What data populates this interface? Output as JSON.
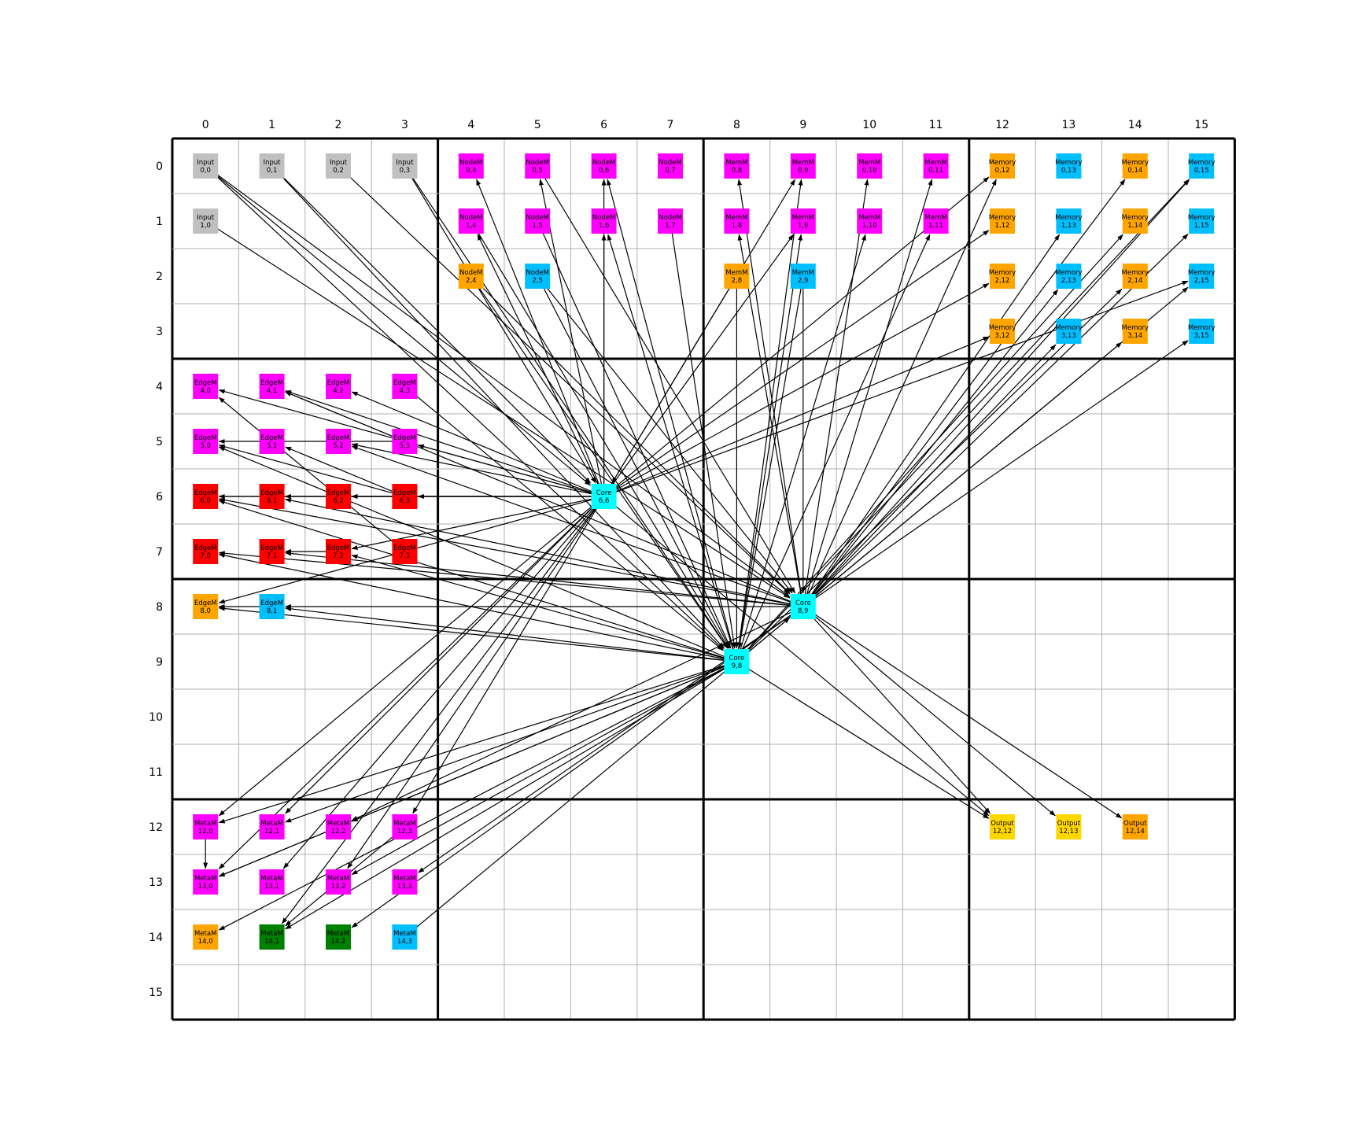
{
  "grid": {
    "rows": 16,
    "cols": 16,
    "x_ticks": [
      "0",
      "1",
      "2",
      "3",
      "4",
      "5",
      "6",
      "7",
      "8",
      "9",
      "10",
      "11",
      "12",
      "13",
      "14",
      "15"
    ],
    "y_ticks": [
      "0",
      "1",
      "2",
      "3",
      "4",
      "5",
      "6",
      "7",
      "8",
      "9",
      "10",
      "11",
      "12",
      "13",
      "14",
      "15"
    ],
    "block_size": 4
  },
  "colors": {
    "gray": "#c0c0c0",
    "magenta": "#ff00ff",
    "orange": "#ffa500",
    "skyblue": "#00bfff",
    "cyan": "#00ffff",
    "red": "#ff0000",
    "green": "#008000",
    "gold": "#ffd700",
    "grid_line": "#b0b0b0",
    "block_line": "#000000",
    "edge": "#000000"
  },
  "nodes": [
    {
      "name": "Input",
      "r": 0,
      "c": 0,
      "color": "gray"
    },
    {
      "name": "Input",
      "r": 0,
      "c": 1,
      "color": "gray"
    },
    {
      "name": "Input",
      "r": 0,
      "c": 2,
      "color": "gray"
    },
    {
      "name": "Input",
      "r": 0,
      "c": 3,
      "color": "gray"
    },
    {
      "name": "Input",
      "r": 1,
      "c": 0,
      "color": "gray"
    },
    {
      "name": "NodeM",
      "r": 0,
      "c": 4,
      "color": "magenta"
    },
    {
      "name": "NodeM",
      "r": 0,
      "c": 5,
      "color": "magenta"
    },
    {
      "name": "NodeM",
      "r": 0,
      "c": 6,
      "color": "magenta"
    },
    {
      "name": "NodeM",
      "r": 0,
      "c": 7,
      "color": "magenta"
    },
    {
      "name": "NodeM",
      "r": 1,
      "c": 4,
      "color": "magenta"
    },
    {
      "name": "NodeM",
      "r": 1,
      "c": 5,
      "color": "magenta"
    },
    {
      "name": "NodeM",
      "r": 1,
      "c": 6,
      "color": "magenta"
    },
    {
      "name": "NodeM",
      "r": 1,
      "c": 7,
      "color": "magenta"
    },
    {
      "name": "NodeM",
      "r": 2,
      "c": 4,
      "color": "orange"
    },
    {
      "name": "NodeM",
      "r": 2,
      "c": 5,
      "color": "skyblue"
    },
    {
      "name": "MemM",
      "r": 0,
      "c": 8,
      "color": "magenta"
    },
    {
      "name": "MemM",
      "r": 0,
      "c": 9,
      "color": "magenta"
    },
    {
      "name": "MemM",
      "r": 0,
      "c": 10,
      "color": "magenta"
    },
    {
      "name": "MemM",
      "r": 0,
      "c": 11,
      "color": "magenta"
    },
    {
      "name": "MemM",
      "r": 1,
      "c": 8,
      "color": "magenta"
    },
    {
      "name": "MemM",
      "r": 1,
      "c": 9,
      "color": "magenta"
    },
    {
      "name": "MemM",
      "r": 1,
      "c": 10,
      "color": "magenta"
    },
    {
      "name": "MemM",
      "r": 1,
      "c": 11,
      "color": "magenta"
    },
    {
      "name": "MemM",
      "r": 2,
      "c": 8,
      "color": "orange"
    },
    {
      "name": "MemM",
      "r": 2,
      "c": 9,
      "color": "skyblue"
    },
    {
      "name": "Memory",
      "r": 0,
      "c": 12,
      "color": "orange"
    },
    {
      "name": "Memory",
      "r": 0,
      "c": 13,
      "color": "skyblue"
    },
    {
      "name": "Memory",
      "r": 0,
      "c": 14,
      "color": "orange"
    },
    {
      "name": "Memory",
      "r": 0,
      "c": 15,
      "color": "skyblue"
    },
    {
      "name": "Memory",
      "r": 1,
      "c": 12,
      "color": "orange"
    },
    {
      "name": "Memory",
      "r": 1,
      "c": 13,
      "color": "skyblue"
    },
    {
      "name": "Memory",
      "r": 1,
      "c": 14,
      "color": "orange"
    },
    {
      "name": "Memory",
      "r": 1,
      "c": 15,
      "color": "skyblue"
    },
    {
      "name": "Memory",
      "r": 2,
      "c": 12,
      "color": "orange"
    },
    {
      "name": "Memory",
      "r": 2,
      "c": 13,
      "color": "skyblue"
    },
    {
      "name": "Memory",
      "r": 2,
      "c": 14,
      "color": "orange"
    },
    {
      "name": "Memory",
      "r": 2,
      "c": 15,
      "color": "skyblue"
    },
    {
      "name": "Memory",
      "r": 3,
      "c": 12,
      "color": "orange"
    },
    {
      "name": "Memory",
      "r": 3,
      "c": 13,
      "color": "skyblue"
    },
    {
      "name": "Memory",
      "r": 3,
      "c": 14,
      "color": "orange"
    },
    {
      "name": "Memory",
      "r": 3,
      "c": 15,
      "color": "skyblue"
    },
    {
      "name": "EdgeM",
      "r": 4,
      "c": 0,
      "color": "magenta"
    },
    {
      "name": "EdgeM",
      "r": 4,
      "c": 1,
      "color": "magenta"
    },
    {
      "name": "EdgeM",
      "r": 4,
      "c": 2,
      "color": "magenta"
    },
    {
      "name": "EdgeM",
      "r": 4,
      "c": 3,
      "color": "magenta"
    },
    {
      "name": "EdgeM",
      "r": 5,
      "c": 0,
      "color": "magenta"
    },
    {
      "name": "EdgeM",
      "r": 5,
      "c": 1,
      "color": "magenta"
    },
    {
      "name": "EdgeM",
      "r": 5,
      "c": 2,
      "color": "magenta"
    },
    {
      "name": "EdgeM",
      "r": 5,
      "c": 3,
      "color": "magenta"
    },
    {
      "name": "EdgeM",
      "r": 6,
      "c": 0,
      "color": "red"
    },
    {
      "name": "EdgeM",
      "r": 6,
      "c": 1,
      "color": "red"
    },
    {
      "name": "EdgeM",
      "r": 6,
      "c": 2,
      "color": "red"
    },
    {
      "name": "EdgeM",
      "r": 6,
      "c": 3,
      "color": "red"
    },
    {
      "name": "EdgeM",
      "r": 7,
      "c": 0,
      "color": "red"
    },
    {
      "name": "EdgeM",
      "r": 7,
      "c": 1,
      "color": "red"
    },
    {
      "name": "EdgeM",
      "r": 7,
      "c": 2,
      "color": "red"
    },
    {
      "name": "EdgeM",
      "r": 7,
      "c": 3,
      "color": "red"
    },
    {
      "name": "EdgeM",
      "r": 8,
      "c": 0,
      "color": "orange"
    },
    {
      "name": "EdgeM",
      "r": 8,
      "c": 1,
      "color": "skyblue"
    },
    {
      "name": "Core",
      "r": 6,
      "c": 6,
      "color": "cyan"
    },
    {
      "name": "Core",
      "r": 8,
      "c": 9,
      "color": "cyan"
    },
    {
      "name": "Core",
      "r": 9,
      "c": 8,
      "color": "cyan"
    },
    {
      "name": "MetaM",
      "r": 12,
      "c": 0,
      "color": "magenta"
    },
    {
      "name": "MetaM",
      "r": 12,
      "c": 1,
      "color": "magenta"
    },
    {
      "name": "MetaM",
      "r": 12,
      "c": 2,
      "color": "magenta"
    },
    {
      "name": "MetaM",
      "r": 12,
      "c": 3,
      "color": "magenta"
    },
    {
      "name": "MetaM",
      "r": 13,
      "c": 0,
      "color": "magenta"
    },
    {
      "name": "MetaM",
      "r": 13,
      "c": 1,
      "color": "magenta"
    },
    {
      "name": "MetaM",
      "r": 13,
      "c": 2,
      "color": "magenta"
    },
    {
      "name": "MetaM",
      "r": 13,
      "c": 3,
      "color": "magenta"
    },
    {
      "name": "MetaM",
      "r": 14,
      "c": 0,
      "color": "orange"
    },
    {
      "name": "MetaM",
      "r": 14,
      "c": 1,
      "color": "green"
    },
    {
      "name": "MetaM",
      "r": 14,
      "c": 2,
      "color": "green"
    },
    {
      "name": "MetaM",
      "r": 14,
      "c": 3,
      "color": "skyblue"
    },
    {
      "name": "Output",
      "r": 12,
      "c": 12,
      "color": "gold"
    },
    {
      "name": "Output",
      "r": 12,
      "c": 13,
      "color": "gold"
    },
    {
      "name": "Output",
      "r": 12,
      "c": 14,
      "color": "orange"
    }
  ],
  "edges": [
    [
      [
        0,
        0
      ],
      [
        6,
        6
      ]
    ],
    [
      [
        0,
        0
      ],
      [
        8,
        9
      ]
    ],
    [
      [
        0,
        0
      ],
      [
        9,
        8
      ]
    ],
    [
      [
        1,
        0
      ],
      [
        8,
        9
      ]
    ],
    [
      [
        0,
        1
      ],
      [
        6,
        6
      ]
    ],
    [
      [
        0,
        1
      ],
      [
        9,
        8
      ]
    ],
    [
      [
        0,
        2
      ],
      [
        8,
        9
      ]
    ],
    [
      [
        0,
        3
      ],
      [
        9,
        8
      ]
    ],
    [
      [
        0,
        3
      ],
      [
        6,
        6
      ]
    ],
    [
      [
        6,
        6
      ],
      [
        0,
        4
      ]
    ],
    [
      [
        6,
        6
      ],
      [
        0,
        5
      ]
    ],
    [
      [
        6,
        6
      ],
      [
        0,
        6
      ]
    ],
    [
      [
        6,
        6
      ],
      [
        1,
        6
      ]
    ],
    [
      [
        6,
        6
      ],
      [
        1,
        4
      ]
    ],
    [
      [
        9,
        8
      ],
      [
        0,
        6
      ]
    ],
    [
      [
        9,
        8
      ],
      [
        1,
        6
      ]
    ],
    [
      [
        8,
        9
      ],
      [
        0,
        8
      ]
    ],
    [
      [
        8,
        9
      ],
      [
        1,
        8
      ]
    ],
    [
      [
        9,
        8
      ],
      [
        0,
        9
      ]
    ],
    [
      [
        9,
        8
      ],
      [
        1,
        9
      ]
    ],
    [
      [
        6,
        6
      ],
      [
        0,
        9
      ]
    ],
    [
      [
        6,
        6
      ],
      [
        1,
        9
      ]
    ],
    [
      [
        8,
        9
      ],
      [
        0,
        10
      ]
    ],
    [
      [
        9,
        8
      ],
      [
        1,
        10
      ]
    ],
    [
      [
        8,
        9
      ],
      [
        0,
        11
      ]
    ],
    [
      [
        9,
        8
      ],
      [
        1,
        11
      ]
    ],
    [
      [
        6,
        6
      ],
      [
        0,
        12
      ]
    ],
    [
      [
        8,
        9
      ],
      [
        0,
        12
      ]
    ],
    [
      [
        8,
        9
      ],
      [
        0,
        14
      ]
    ],
    [
      [
        9,
        8
      ],
      [
        0,
        15
      ]
    ],
    [
      [
        8,
        9
      ],
      [
        0,
        15
      ]
    ],
    [
      [
        6,
        6
      ],
      [
        1,
        12
      ]
    ],
    [
      [
        8,
        9
      ],
      [
        1,
        13
      ]
    ],
    [
      [
        9,
        8
      ],
      [
        1,
        14
      ]
    ],
    [
      [
        8,
        9
      ],
      [
        1,
        15
      ]
    ],
    [
      [
        6,
        6
      ],
      [
        2,
        12
      ]
    ],
    [
      [
        8,
        9
      ],
      [
        2,
        13
      ]
    ],
    [
      [
        9,
        8
      ],
      [
        2,
        14
      ]
    ],
    [
      [
        6,
        6
      ],
      [
        2,
        15
      ]
    ],
    [
      [
        8,
        9
      ],
      [
        2,
        15
      ]
    ],
    [
      [
        6,
        6
      ],
      [
        3,
        12
      ]
    ],
    [
      [
        8,
        9
      ],
      [
        3,
        13
      ]
    ],
    [
      [
        9,
        8
      ],
      [
        3,
        14
      ]
    ],
    [
      [
        8,
        9
      ],
      [
        3,
        15
      ]
    ],
    [
      [
        0,
        5
      ],
      [
        8,
        9
      ]
    ],
    [
      [
        1,
        4
      ],
      [
        9,
        8
      ]
    ],
    [
      [
        1,
        5
      ],
      [
        9,
        8
      ]
    ],
    [
      [
        1,
        7
      ],
      [
        9,
        8
      ]
    ],
    [
      [
        2,
        4
      ],
      [
        9,
        8
      ]
    ],
    [
      [
        2,
        4
      ],
      [
        8,
        9
      ]
    ],
    [
      [
        2,
        5
      ],
      [
        9,
        8
      ]
    ],
    [
      [
        2,
        5
      ],
      [
        8,
        9
      ]
    ],
    [
      [
        2,
        8
      ],
      [
        9,
        8
      ]
    ],
    [
      [
        2,
        9
      ],
      [
        9,
        8
      ]
    ],
    [
      [
        2,
        9
      ],
      [
        8,
        9
      ]
    ],
    [
      [
        2,
        8
      ],
      [
        6,
        6
      ]
    ],
    [
      [
        6,
        6
      ],
      [
        4,
        0
      ]
    ],
    [
      [
        6,
        6
      ],
      [
        4,
        1
      ]
    ],
    [
      [
        6,
        6
      ],
      [
        4,
        2
      ]
    ],
    [
      [
        6,
        6
      ],
      [
        5,
        2
      ]
    ],
    [
      [
        6,
        6
      ],
      [
        5,
        3
      ]
    ],
    [
      [
        6,
        6
      ],
      [
        6,
        3
      ]
    ],
    [
      [
        6,
        6
      ],
      [
        6,
        2
      ]
    ],
    [
      [
        6,
        6
      ],
      [
        6,
        1
      ]
    ],
    [
      [
        6,
        6
      ],
      [
        6,
        0
      ]
    ],
    [
      [
        6,
        6
      ],
      [
        7,
        2
      ]
    ],
    [
      [
        6,
        6
      ],
      [
        8,
        0
      ]
    ],
    [
      [
        4,
        3
      ],
      [
        9,
        8
      ]
    ],
    [
      [
        5,
        3
      ],
      [
        4,
        1
      ]
    ],
    [
      [
        5,
        3
      ],
      [
        5,
        0
      ]
    ],
    [
      [
        6,
        3
      ],
      [
        5,
        0
      ]
    ],
    [
      [
        6,
        3
      ],
      [
        5,
        1
      ]
    ],
    [
      [
        7,
        3
      ],
      [
        4,
        0
      ]
    ],
    [
      [
        8,
        9
      ],
      [
        4,
        1
      ]
    ],
    [
      [
        8,
        9
      ],
      [
        5,
        2
      ]
    ],
    [
      [
        8,
        9
      ],
      [
        6,
        0
      ]
    ],
    [
      [
        8,
        9
      ],
      [
        6,
        1
      ]
    ],
    [
      [
        8,
        9
      ],
      [
        7,
        0
      ]
    ],
    [
      [
        8,
        9
      ],
      [
        7,
        1
      ]
    ],
    [
      [
        8,
        9
      ],
      [
        8,
        1
      ]
    ],
    [
      [
        9,
        8
      ],
      [
        5,
        0
      ]
    ],
    [
      [
        9,
        8
      ],
      [
        6,
        0
      ]
    ],
    [
      [
        9,
        8
      ],
      [
        7,
        0
      ]
    ],
    [
      [
        9,
        8
      ],
      [
        7,
        2
      ]
    ],
    [
      [
        9,
        8
      ],
      [
        8,
        0
      ]
    ],
    [
      [
        9,
        8
      ],
      [
        8,
        1
      ]
    ],
    [
      [
        8,
        1
      ],
      [
        8,
        0
      ]
    ],
    [
      [
        7,
        2
      ],
      [
        7,
        1
      ]
    ],
    [
      [
        6,
        3
      ],
      [
        6,
        2
      ]
    ],
    [
      [
        6,
        2
      ],
      [
        6,
        1
      ]
    ],
    [
      [
        6,
        1
      ],
      [
        6,
        0
      ]
    ],
    [
      [
        6,
        6
      ],
      [
        12,
        0
      ]
    ],
    [
      [
        6,
        6
      ],
      [
        12,
        1
      ]
    ],
    [
      [
        6,
        6
      ],
      [
        13,
        0
      ]
    ],
    [
      [
        6,
        6
      ],
      [
        13,
        1
      ]
    ],
    [
      [
        6,
        6
      ],
      [
        13,
        2
      ]
    ],
    [
      [
        6,
        6
      ],
      [
        14,
        1
      ]
    ],
    [
      [
        6,
        6
      ],
      [
        12,
        3
      ]
    ],
    [
      [
        9,
        8
      ],
      [
        12,
        0
      ]
    ],
    [
      [
        9,
        8
      ],
      [
        12,
        1
      ]
    ],
    [
      [
        9,
        8
      ],
      [
        12,
        2
      ]
    ],
    [
      [
        9,
        8
      ],
      [
        13,
        0
      ]
    ],
    [
      [
        9,
        8
      ],
      [
        13,
        2
      ]
    ],
    [
      [
        9,
        8
      ],
      [
        14,
        0
      ]
    ],
    [
      [
        9,
        8
      ],
      [
        14,
        1
      ]
    ],
    [
      [
        8,
        9
      ],
      [
        12,
        2
      ]
    ],
    [
      [
        8,
        9
      ],
      [
        13,
        3
      ]
    ],
    [
      [
        8,
        9
      ],
      [
        14,
        2
      ]
    ],
    [
      [
        12,
        0
      ],
      [
        13,
        0
      ]
    ],
    [
      [
        12,
        2
      ],
      [
        13,
        0
      ]
    ],
    [
      [
        12,
        3
      ],
      [
        14,
        1
      ]
    ],
    [
      [
        14,
        3
      ],
      [
        8,
        9
      ]
    ],
    [
      [
        8,
        9
      ],
      [
        12,
        12
      ]
    ],
    [
      [
        8,
        9
      ],
      [
        12,
        13
      ]
    ],
    [
      [
        8,
        9
      ],
      [
        12,
        14
      ]
    ],
    [
      [
        9,
        8
      ],
      [
        12,
        12
      ]
    ],
    [
      [
        6,
        6
      ],
      [
        12,
        12
      ]
    ]
  ]
}
